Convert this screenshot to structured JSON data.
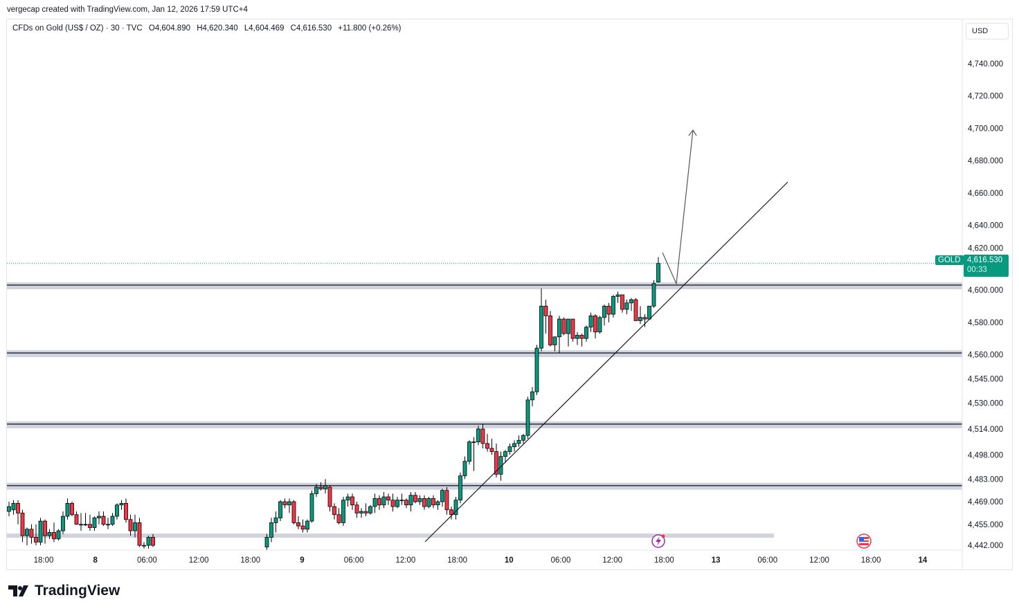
{
  "credit": "vergecap created with TradingView.com, Jan 12, 2026 17:59 UTC+4",
  "legend": {
    "symbol": "CFDs on Gold (US$ / OZ) · 30 · TVC",
    "open": "O4,604.890",
    "high": "H4,620.340",
    "low": "L4,604.469",
    "close": "C4,616.530",
    "change": "+11.800 (+0.26%)"
  },
  "currency_button": "USD",
  "symbol_tag": "GOLD",
  "last_price": "4,616.530",
  "countdown": "00:33",
  "logo": "TradingView",
  "colors": {
    "up": "#089981",
    "down": "#f23645",
    "price_line": "#089981",
    "zone": "#d1d4dc"
  },
  "chart_data": {
    "type": "candlestick",
    "title": "CFDs on Gold (US$ / OZ) · 30 · TVC",
    "ylim": [
      4430,
      4760
    ],
    "price_ticks": [
      "4,740.000",
      "4,720.000",
      "4,700.000",
      "4,680.000",
      "4,660.000",
      "4,640.000",
      "4,620.000",
      "4,600.000",
      "4,580.000",
      "4,560.000",
      "4,545.000",
      "4,530.000",
      "4,514.000",
      "4,498.000",
      "4,483.000",
      "4,469.000",
      "4,455.000",
      "4,442.000"
    ],
    "price_tick_values": [
      4740,
      4720,
      4700,
      4680,
      4660,
      4640,
      4620,
      4600,
      4580,
      4560,
      4545,
      4530,
      4514,
      4498,
      4483,
      4469,
      4455,
      4442
    ],
    "time_ticks": [
      {
        "label": "18:00",
        "bold": false
      },
      {
        "label": "8",
        "bold": true
      },
      {
        "label": "06:00",
        "bold": false
      },
      {
        "label": "12:00",
        "bold": false
      },
      {
        "label": "18:00",
        "bold": false
      },
      {
        "label": "9",
        "bold": true
      },
      {
        "label": "06:00",
        "bold": false
      },
      {
        "label": "12:00",
        "bold": false
      },
      {
        "label": "18:00",
        "bold": false
      },
      {
        "label": "10",
        "bold": true
      },
      {
        "label": "06:00",
        "bold": false
      },
      {
        "label": "12:00",
        "bold": false
      },
      {
        "label": "18:00",
        "bold": false
      },
      {
        "label": "13",
        "bold": true
      },
      {
        "label": "06:00",
        "bold": false
      },
      {
        "label": "12:00",
        "bold": false
      },
      {
        "label": "18:00",
        "bold": false
      },
      {
        "label": "14",
        "bold": true
      }
    ],
    "last_price": 4616.53,
    "horizontal_levels": [
      4603,
      4561,
      4517,
      4479
    ],
    "lower_zone": 4448,
    "segment1": [
      [
        4463,
        4469,
        4460,
        4466
      ],
      [
        4464,
        4470,
        4461,
        4468
      ],
      [
        4468,
        4470,
        4455,
        4462
      ],
      [
        4462,
        4464,
        4444,
        4448
      ],
      [
        4448,
        4453,
        4442,
        4452
      ],
      [
        4452,
        4455,
        4443,
        4447
      ],
      [
        4447,
        4455,
        4442,
        4444
      ],
      [
        4444,
        4459,
        4442,
        4457
      ],
      [
        4457,
        4458,
        4443,
        4448
      ],
      [
        4448,
        4452,
        4446,
        4450
      ],
      [
        4450,
        4456,
        4444,
        4446
      ],
      [
        4446,
        4452,
        4445,
        4451
      ],
      [
        4451,
        4463,
        4449,
        4460
      ],
      [
        4460,
        4471,
        4458,
        4468
      ],
      [
        4468,
        4469,
        4460,
        4461
      ],
      [
        4461,
        4463,
        4455,
        4455
      ],
      [
        4455,
        4462,
        4451,
        4455
      ],
      [
        4455,
        4462,
        4454,
        4455
      ],
      [
        4455,
        4461,
        4451,
        4453
      ],
      [
        4453,
        4460,
        4451,
        4459
      ],
      [
        4459,
        4463,
        4455,
        4460
      ],
      [
        4460,
        4463,
        4454,
        4455
      ],
      [
        4455,
        4459,
        4452,
        4455
      ],
      [
        4455,
        4462,
        4454,
        4460
      ],
      [
        4460,
        4468,
        4458,
        4467
      ],
      [
        4467,
        4470,
        4464,
        4468
      ],
      [
        4468,
        4471,
        4456,
        4458
      ],
      [
        4458,
        4461,
        4448,
        4451
      ],
      [
        4451,
        4461,
        4447,
        4456
      ],
      [
        4456,
        4459,
        4441,
        4442
      ],
      [
        4442,
        4444,
        4440,
        4442
      ],
      [
        4442,
        4448,
        4440,
        4447
      ],
      [
        4447,
        4449,
        4441,
        4442
      ]
    ],
    "segment2": [
      [
        4441,
        4449,
        4438,
        4447
      ],
      [
        4447,
        4459,
        4444,
        4456
      ],
      [
        4456,
        4463,
        4450,
        4459
      ],
      [
        4459,
        4470,
        4457,
        4469
      ],
      [
        4469,
        4471,
        4465,
        4467
      ],
      [
        4467,
        4471,
        4462,
        4469
      ],
      [
        4469,
        4470,
        4455,
        4456
      ],
      [
        4456,
        4460,
        4452,
        4454
      ],
      [
        4454,
        4458,
        4450,
        4452
      ],
      [
        4452,
        4458,
        4450,
        4457
      ],
      [
        4457,
        4476,
        4456,
        4474
      ],
      [
        4474,
        4480,
        4472,
        4478
      ],
      [
        4478,
        4481,
        4476,
        4477
      ],
      [
        4477,
        4483,
        4474,
        4479
      ],
      [
        4478,
        4479,
        4463,
        4466
      ],
      [
        4466,
        4468,
        4458,
        4461
      ],
      [
        4461,
        4465,
        4455,
        4456
      ],
      [
        4456,
        4472,
        4454,
        4470
      ],
      [
        4470,
        4474,
        4466,
        4472
      ],
      [
        4472,
        4474,
        4464,
        4467
      ],
      [
        4467,
        4469,
        4459,
        4462
      ],
      [
        4462,
        4465,
        4459,
        4463
      ],
      [
        4463,
        4468,
        4460,
        4462
      ],
      [
        4462,
        4467,
        4461,
        4466
      ],
      [
        4466,
        4474,
        4462,
        4471
      ],
      [
        4471,
        4473,
        4464,
        4467
      ],
      [
        4467,
        4475,
        4465,
        4472
      ],
      [
        4472,
        4474,
        4467,
        4470
      ],
      [
        4470,
        4474,
        4463,
        4466
      ],
      [
        4466,
        4472,
        4465,
        4470
      ],
      [
        4470,
        4474,
        4467,
        4470
      ],
      [
        4470,
        4471,
        4465,
        4467
      ],
      [
        4467,
        4475,
        4463,
        4473
      ],
      [
        4473,
        4475,
        4468,
        4469
      ],
      [
        4469,
        4473,
        4467,
        4471
      ],
      [
        4471,
        4473,
        4464,
        4466
      ],
      [
        4466,
        4472,
        4465,
        4471
      ],
      [
        4471,
        4473,
        4465,
        4467
      ],
      [
        4467,
        4470,
        4464,
        4469
      ],
      [
        4469,
        4477,
        4466,
        4476
      ],
      [
        4476,
        4478,
        4461,
        4464
      ],
      [
        4464,
        4466,
        4458,
        4461
      ],
      [
        4461,
        4472,
        4458,
        4470
      ],
      [
        4470,
        4487,
        4468,
        4485
      ],
      [
        4485,
        4497,
        4483,
        4494
      ],
      [
        4494,
        4507,
        4492,
        4506
      ],
      [
        4506,
        4509,
        4488,
        4506
      ],
      [
        4506,
        4516,
        4504,
        4514
      ],
      [
        4514,
        4517,
        4502,
        4505
      ],
      [
        4505,
        4511,
        4500,
        4502
      ],
      [
        4502,
        4508,
        4498,
        4500
      ],
      [
        4500,
        4505,
        4484,
        4486
      ],
      [
        4486,
        4500,
        4482,
        4497
      ],
      [
        4497,
        4501,
        4493,
        4500
      ],
      [
        4500,
        4505,
        4498,
        4503
      ],
      [
        4503,
        4507,
        4500,
        4505
      ],
      [
        4505,
        4510,
        4503,
        4507
      ],
      [
        4507,
        4511,
        4505,
        4510
      ],
      [
        4510,
        4534,
        4508,
        4532
      ],
      [
        4532,
        4540,
        4528,
        4537
      ],
      [
        4537,
        4566,
        4535,
        4564
      ],
      [
        4564,
        4601,
        4562,
        4590
      ],
      [
        4590,
        4594,
        4573,
        4584
      ],
      [
        4584,
        4587,
        4565,
        4566
      ],
      [
        4566,
        4571,
        4562,
        4571
      ],
      [
        4571,
        4584,
        4561,
        4582
      ],
      [
        4582,
        4583,
        4572,
        4573
      ],
      [
        4573,
        4582,
        4565,
        4582
      ],
      [
        4582,
        4580,
        4568,
        4570
      ],
      [
        4570,
        4574,
        4566,
        4572
      ],
      [
        4572,
        4573,
        4565,
        4570
      ],
      [
        4570,
        4578,
        4568,
        4577
      ],
      [
        4577,
        4586,
        4574,
        4584
      ],
      [
        4584,
        4585,
        4570,
        4574
      ],
      [
        4574,
        4584,
        4573,
        4583
      ],
      [
        4583,
        4591,
        4578,
        4590
      ],
      [
        4590,
        4592,
        4580,
        4585
      ],
      [
        4585,
        4597,
        4583,
        4596
      ],
      [
        4596,
        4599,
        4592,
        4597
      ],
      [
        4597,
        4597,
        4586,
        4588
      ],
      [
        4588,
        4594,
        4585,
        4592
      ],
      [
        4592,
        4595,
        4587,
        4594
      ],
      [
        4594,
        4595,
        4583,
        4581
      ],
      [
        4581,
        4590,
        4579,
        4583
      ],
      [
        4583,
        4585,
        4577,
        4582
      ],
      [
        4582,
        4590,
        4582,
        4590
      ],
      [
        4590,
        4606,
        4589,
        4604
      ],
      [
        4604.89,
        4620.34,
        4604.47,
        4616.53
      ]
    ],
    "drawings": {
      "trendline": [
        [
          4442,
          "07:30 Jan 9"
        ],
        [
          4663,
          "Jan 12 ~23:30"
        ]
      ],
      "projection": "down to trendline then up to ~4700"
    }
  }
}
